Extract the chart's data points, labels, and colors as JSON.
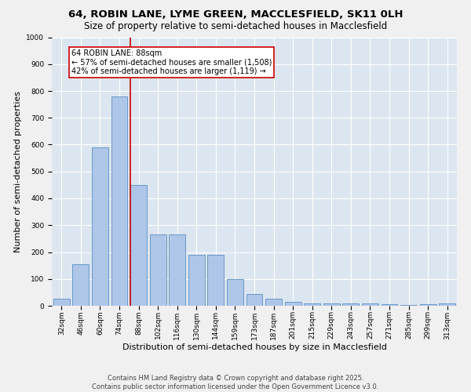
{
  "title_line1": "64, ROBIN LANE, LYME GREEN, MACCLESFIELD, SK11 0LH",
  "title_line2": "Size of property relative to semi-detached houses in Macclesfield",
  "xlabel": "Distribution of semi-detached houses by size in Macclesfield",
  "ylabel": "Number of semi-detached properties",
  "categories": [
    "32sqm",
    "46sqm",
    "60sqm",
    "74sqm",
    "88sqm",
    "102sqm",
    "116sqm",
    "130sqm",
    "144sqm",
    "159sqm",
    "173sqm",
    "187sqm",
    "201sqm",
    "215sqm",
    "229sqm",
    "243sqm",
    "257sqm",
    "271sqm",
    "285sqm",
    "299sqm",
    "313sqm"
  ],
  "values": [
    25,
    155,
    590,
    780,
    450,
    265,
    265,
    190,
    190,
    100,
    45,
    25,
    15,
    10,
    10,
    10,
    8,
    5,
    3,
    5,
    8
  ],
  "bar_color": "#aec6e8",
  "bar_edge_color": "#5a8fc2",
  "highlight_index": 4,
  "vline_color": "#cc0000",
  "vline_index": 4,
  "annotation_text": "64 ROBIN LANE: 88sqm\n← 57% of semi-detached houses are smaller (1,508)\n42% of semi-detached houses are larger (1,119) →",
  "annotation_box_color": "#ffffff",
  "annotation_box_edge": "#cc0000",
  "ylim": [
    0,
    1000
  ],
  "yticks": [
    0,
    100,
    200,
    300,
    400,
    500,
    600,
    700,
    800,
    900,
    1000
  ],
  "background_color": "#dce6f0",
  "fig_background_color": "#f0f0f0",
  "footer_line1": "Contains HM Land Registry data © Crown copyright and database right 2025.",
  "footer_line2": "Contains public sector information licensed under the Open Government Licence v3.0.",
  "title_fontsize": 9.5,
  "subtitle_fontsize": 8.5,
  "axis_label_fontsize": 8,
  "tick_fontsize": 6.5,
  "annotation_fontsize": 7,
  "footer_fontsize": 6
}
